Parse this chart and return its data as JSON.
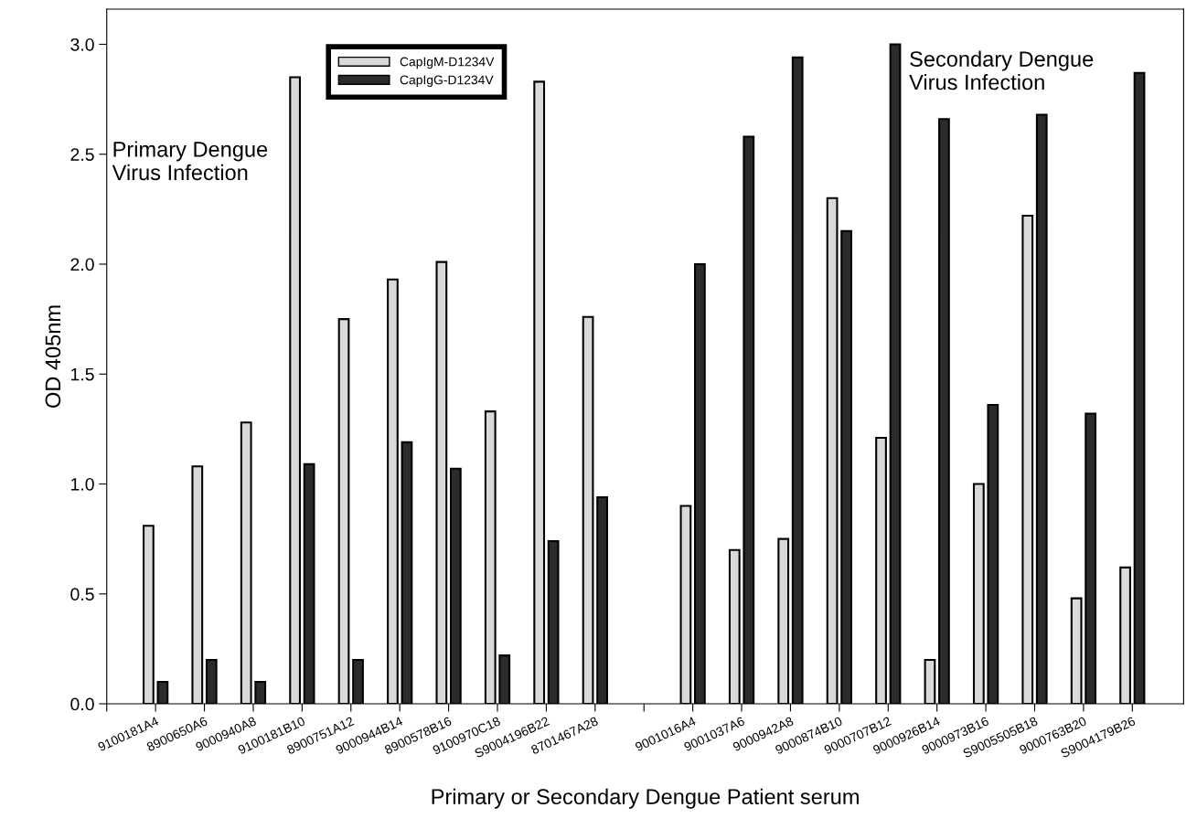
{
  "chart_data": {
    "type": "bar",
    "xlabel": "Primary or Secondary Dengue Patient serum",
    "ylabel": "OD 405nm",
    "categories": [
      "9100181A4",
      "8900650A6",
      "9000940A8",
      "9100181B10",
      "8900751A12",
      "9000944B14",
      "8900578B16",
      "9100970C18",
      "S9004196B22",
      "8701467A28",
      null,
      "9001016A4",
      "9001037A6",
      "9000942A8",
      "9000874B10",
      "9000707B12",
      "9000926B14",
      "9000973B16",
      "S9005505B18",
      "9000763B20",
      "S9004179B26"
    ],
    "series": [
      {
        "name": "CapIgM-D1234V",
        "color": "#d9d9d9",
        "values": [
          0.81,
          1.08,
          1.28,
          2.85,
          1.75,
          1.93,
          2.01,
          1.33,
          2.83,
          1.76,
          null,
          0.9,
          0.7,
          0.75,
          2.3,
          1.21,
          0.2,
          1.0,
          2.22,
          0.48,
          0.62
        ]
      },
      {
        "name": "CapIgG-D1234V",
        "color": "#2b2b2b",
        "values": [
          0.1,
          0.2,
          0.1,
          1.09,
          0.2,
          1.19,
          1.07,
          0.22,
          0.74,
          0.94,
          null,
          2.0,
          2.58,
          2.94,
          2.15,
          3.0,
          2.66,
          1.36,
          2.68,
          1.32,
          2.87
        ]
      }
    ],
    "ylim": [
      0,
      3.16
    ],
    "yticks": [
      {
        "value": 0,
        "label": "0.0"
      },
      {
        "value": 0.5,
        "label": "0.5"
      },
      {
        "value": 1,
        "label": "1.0"
      },
      {
        "value": 1.5,
        "label": "1.5"
      },
      {
        "value": 2,
        "label": "2.0"
      },
      {
        "value": 2.5,
        "label": "2.5"
      },
      {
        "value": 3,
        "label": "3.0"
      }
    ],
    "annotations": [
      "Primary Dengue\nVirus Infection",
      "Secondary Dengue\nVirus Infection"
    ],
    "legend": "top",
    "grid": false
  }
}
